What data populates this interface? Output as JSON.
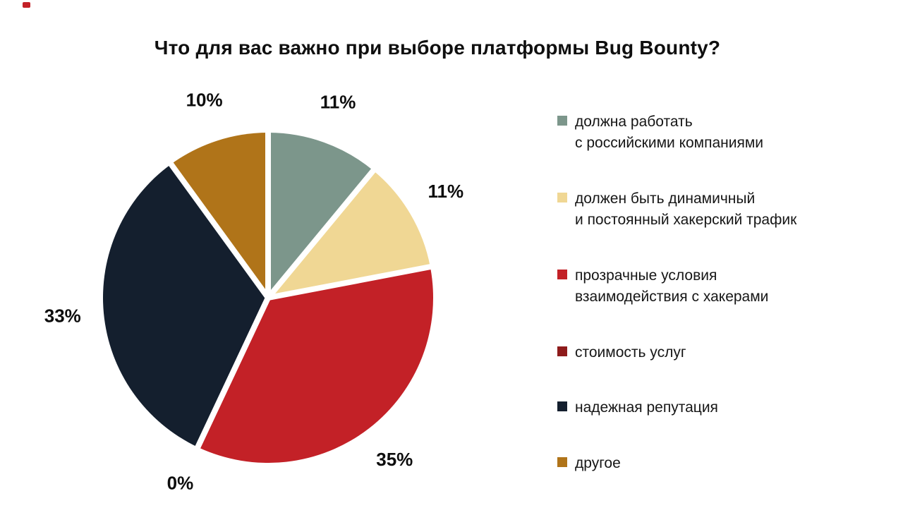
{
  "title": "Что для вас важно при выборе платформы Bug Bounty?",
  "chart_data": {
    "type": "pie",
    "title": "Что для вас важно при выборе платформы Bug Bounty?",
    "direction": "clockwise",
    "start_angle_deg": 0,
    "legend_position": "right",
    "slices": [
      {
        "label": "должна работать с российскими компаниями",
        "value": 11,
        "pct_label": "11%",
        "color": "#7C968B"
      },
      {
        "label": "должен быть динамичный и постоянный хакерский трафик",
        "value": 11,
        "pct_label": "11%",
        "color": "#F0D794"
      },
      {
        "label": "прозрачные условия взаимодействия с хакерами",
        "value": 35,
        "pct_label": "35%",
        "color": "#C32127"
      },
      {
        "label": "стоимость услуг",
        "value": 0,
        "pct_label": "0%",
        "color": "#8E1B1B"
      },
      {
        "label": "надежная репутация",
        "value": 33,
        "pct_label": "33%",
        "color": "#141F2E"
      },
      {
        "label": "другое",
        "value": 10,
        "pct_label": "10%",
        "color": "#B07419"
      }
    ]
  },
  "legend": {
    "items": [
      {
        "lines": [
          "должна работать",
          "с российскими компаниями"
        ],
        "color": "#7C968B"
      },
      {
        "lines": [
          "должен быть динамичный",
          "и постоянный хакерский трафик"
        ],
        "color": "#F0D794"
      },
      {
        "lines": [
          "прозрачные условия",
          "взаимодействия с хакерами"
        ],
        "color": "#C32127"
      },
      {
        "lines": [
          "стоимость услуг"
        ],
        "color": "#8E1B1B"
      },
      {
        "lines": [
          "надежная репутация"
        ],
        "color": "#141F2E"
      },
      {
        "lines": [
          "другое"
        ],
        "color": "#B07419"
      }
    ]
  },
  "colors": {
    "background": "#FFFFFF",
    "text": "#0F0F0F",
    "separator": "#FFFFFF"
  }
}
